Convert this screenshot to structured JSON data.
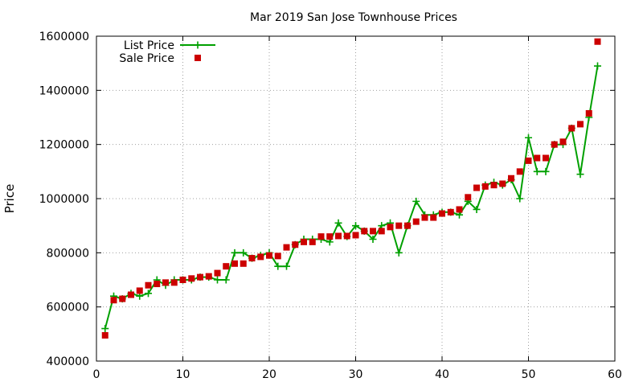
{
  "chart_data": {
    "type": "line",
    "title": "Mar 2019 San Jose Townhouse Prices",
    "xlabel": "",
    "ylabel": "Price",
    "xlim": [
      0,
      60
    ],
    "ylim": [
      400000,
      1600000
    ],
    "xticks": [
      0,
      10,
      20,
      30,
      40,
      50,
      60
    ],
    "yticks": [
      400000,
      600000,
      800000,
      1000000,
      1200000,
      1400000,
      1600000
    ],
    "grid": true,
    "legend_position": "top-left",
    "series": [
      {
        "name": "List Price",
        "style": "linespoints",
        "color": "#00a000",
        "marker": "plus",
        "x": [
          1,
          2,
          3,
          4,
          5,
          6,
          7,
          8,
          9,
          10,
          11,
          12,
          13,
          14,
          15,
          16,
          17,
          18,
          19,
          20,
          21,
          22,
          23,
          24,
          25,
          26,
          27,
          28,
          29,
          30,
          31,
          32,
          33,
          34,
          35,
          36,
          37,
          38,
          39,
          40,
          41,
          42,
          43,
          44,
          45,
          46,
          47,
          48,
          49,
          50,
          51,
          52,
          53,
          54,
          55,
          56,
          57,
          58
        ],
        "y": [
          520000,
          640000,
          630000,
          650000,
          640000,
          650000,
          700000,
          680000,
          700000,
          700000,
          700000,
          710000,
          710000,
          700000,
          700000,
          800000,
          800000,
          780000,
          790000,
          800000,
          750000,
          750000,
          830000,
          850000,
          850000,
          850000,
          840000,
          910000,
          860000,
          900000,
          880000,
          850000,
          900000,
          910000,
          800000,
          900000,
          990000,
          940000,
          940000,
          950000,
          950000,
          940000,
          990000,
          960000,
          1050000,
          1060000,
          1050000,
          1070000,
          1000000,
          1225000,
          1100000,
          1100000,
          1200000,
          1200000,
          1260000,
          1090000,
          1300000,
          1490000
        ]
      },
      {
        "name": "Sale Price",
        "style": "points",
        "color": "#cc0000",
        "marker": "square",
        "x": [
          1,
          2,
          3,
          4,
          5,
          6,
          7,
          8,
          9,
          10,
          11,
          12,
          13,
          14,
          15,
          16,
          17,
          18,
          19,
          20,
          21,
          22,
          23,
          24,
          25,
          26,
          27,
          28,
          29,
          30,
          31,
          32,
          33,
          34,
          35,
          36,
          37,
          38,
          39,
          40,
          41,
          42,
          43,
          44,
          45,
          46,
          47,
          48,
          49,
          50,
          51,
          52,
          53,
          54,
          55,
          56,
          57,
          58
        ],
        "y": [
          495000,
          625000,
          630000,
          645000,
          660000,
          680000,
          685000,
          690000,
          690000,
          700000,
          705000,
          710000,
          713000,
          725000,
          750000,
          760000,
          760000,
          780000,
          785000,
          790000,
          788000,
          820000,
          830000,
          840000,
          840000,
          860000,
          860000,
          862000,
          862000,
          865000,
          880000,
          880000,
          880000,
          895000,
          900000,
          900000,
          915000,
          930000,
          930000,
          945000,
          950000,
          960000,
          1005000,
          1040000,
          1045000,
          1050000,
          1055000,
          1075000,
          1100000,
          1140000,
          1150000,
          1150000,
          1200000,
          1210000,
          1260000,
          1275000,
          1315000,
          1580000
        ]
      }
    ]
  }
}
